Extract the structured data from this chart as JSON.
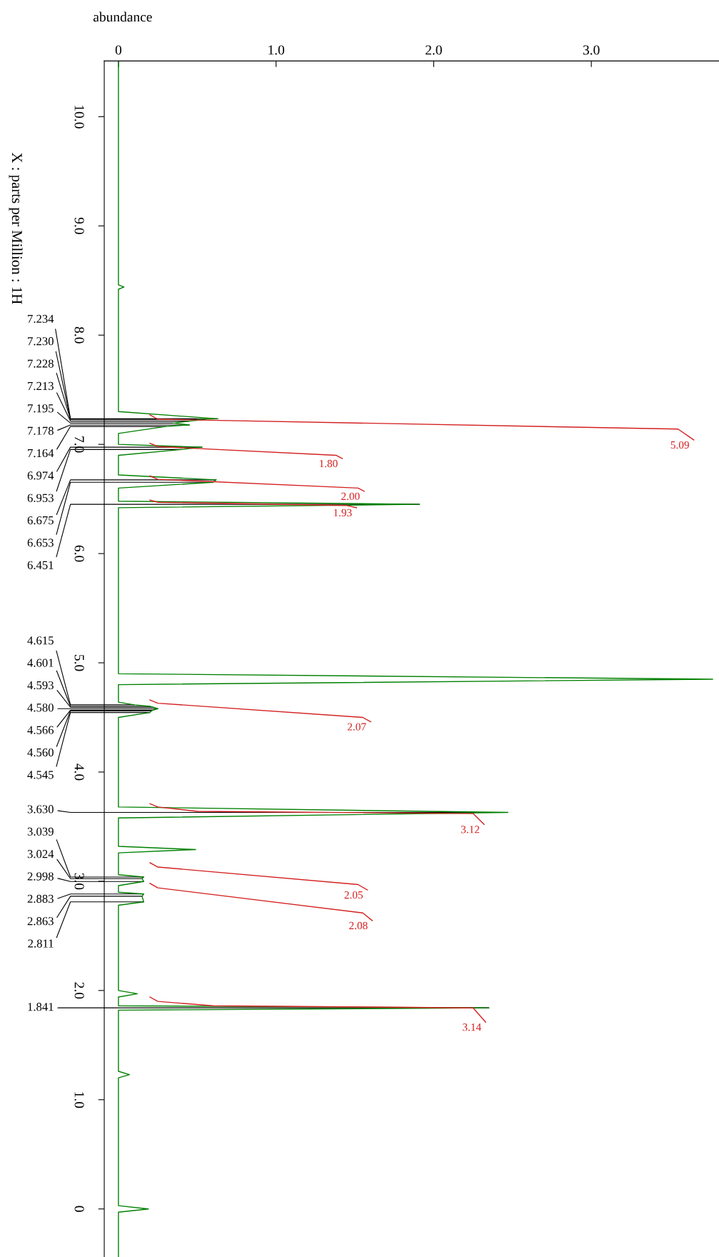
{
  "chart_data": {
    "type": "line",
    "xlabel": "abundance",
    "ylabel": "X : parts per Million : 1H",
    "xlim": [
      -0.09,
      3.81
    ],
    "ylim": [
      -0.44,
      10.51
    ],
    "xticks": [
      {
        "value": 0,
        "label": "0"
      },
      {
        "value": 1,
        "label": "1.0"
      },
      {
        "value": 2,
        "label": "2.0"
      },
      {
        "value": 3,
        "label": "3.0"
      }
    ],
    "yticks": [
      {
        "value": 10,
        "label": "10.0"
      },
      {
        "value": 9,
        "label": "9.0"
      },
      {
        "value": 8,
        "label": "8.0"
      },
      {
        "value": 7,
        "label": "7.0"
      },
      {
        "value": 6,
        "label": "6.0"
      },
      {
        "value": 5,
        "label": "5.0"
      },
      {
        "value": 4,
        "label": "4.0"
      },
      {
        "value": 3,
        "label": "3.0"
      },
      {
        "value": 2,
        "label": "2.0"
      },
      {
        "value": 1,
        "label": "1.0"
      },
      {
        "value": 0,
        "label": "0"
      }
    ],
    "series": [
      {
        "color": "#008000",
        "values": [
          10.51,
          8.46,
          8.44,
          8.42,
          7.3,
          7.234,
          7.23,
          7.228,
          7.213,
          7.195,
          7.178,
          7.164,
          7.1,
          7.0,
          6.974,
          6.953,
          6.9,
          6.72,
          6.675,
          6.653,
          6.6,
          6.48,
          6.451,
          6.42,
          4.9,
          4.85,
          4.8,
          4.64,
          4.615,
          4.601,
          4.593,
          4.58,
          4.566,
          4.56,
          4.545,
          4.5,
          3.68,
          3.63,
          3.58,
          3.32,
          3.29,
          3.26,
          3.06,
          3.039,
          3.024,
          2.998,
          2.96,
          2.9,
          2.883,
          2.863,
          2.811,
          2.78,
          2.0,
          1.97,
          1.94,
          1.86,
          1.841,
          1.82,
          1.26,
          1.23,
          1.2,
          0.03,
          0.0,
          -0.03,
          -0.44
        ],
        "x": [
          0,
          0,
          0.035,
          0,
          0,
          0.63,
          0.5,
          0.55,
          0.45,
          0.35,
          0.45,
          0.3,
          0,
          0,
          0.53,
          0.4,
          0,
          0,
          0.62,
          0.6,
          0,
          0,
          1.91,
          0,
          0,
          3.77,
          0,
          0,
          0.1,
          0.2,
          0.22,
          0.25,
          0.22,
          0.21,
          0.2,
          0,
          0,
          2.47,
          0,
          0,
          0.49,
          0,
          0,
          0.16,
          0.15,
          0.16,
          0,
          0,
          0.16,
          0.15,
          0.16,
          0,
          0,
          0.12,
          0,
          0,
          2.35,
          0,
          0,
          0.07,
          0,
          0,
          0.19,
          0,
          0
        ]
      },
      {
        "color": "#d42020",
        "values": [
          7.27,
          7.23,
          7.14,
          7.04
        ],
        "x": [
          0.2,
          0.25,
          3.55,
          3.65
        ]
      },
      {
        "color": "#d42020",
        "values": [
          7.01,
          6.98,
          6.9,
          6.87
        ],
        "x": [
          0.2,
          0.25,
          1.38,
          1.42
        ]
      },
      {
        "color": "#d42020",
        "values": [
          6.71,
          6.68,
          6.6,
          6.57
        ],
        "x": [
          0.2,
          0.25,
          1.52,
          1.56
        ]
      },
      {
        "color": "#d42020",
        "values": [
          6.49,
          6.47,
          6.44,
          6.42
        ],
        "x": [
          0.2,
          0.25,
          1.45,
          1.51
        ]
      },
      {
        "color": "#d42020",
        "values": [
          4.66,
          4.63,
          4.5,
          4.46
        ],
        "x": [
          0.2,
          0.25,
          1.55,
          1.6
        ]
      },
      {
        "color": "#d42020",
        "values": [
          3.71,
          3.68,
          3.64,
          3.62,
          3.52
        ],
        "x": [
          0.2,
          0.25,
          0.5,
          2.25,
          2.32
        ]
      },
      {
        "color": "#d42020",
        "values": [
          3.17,
          3.13,
          2.97,
          2.92
        ],
        "x": [
          0.2,
          0.25,
          1.52,
          1.58
        ]
      },
      {
        "color": "#d42020",
        "values": [
          2.98,
          2.94,
          2.71,
          2.64
        ],
        "x": [
          0.2,
          0.25,
          1.55,
          1.61
        ]
      },
      {
        "color": "#d42020",
        "values": [
          1.94,
          1.9,
          1.86,
          1.84,
          1.71
        ],
        "x": [
          0.2,
          0.25,
          0.6,
          2.25,
          2.33
        ]
      }
    ],
    "annotations": [
      {
        "text": "7.234",
        "x": 0.63,
        "y": 7.234
      },
      {
        "text": "7.230",
        "x": 0.5,
        "y": 7.23
      },
      {
        "text": "7.228",
        "x": 0.55,
        "y": 7.228
      },
      {
        "text": "7.213",
        "x": 0.45,
        "y": 7.213
      },
      {
        "text": "7.195",
        "x": 0.35,
        "y": 7.195
      },
      {
        "text": "7.178",
        "x": 0.45,
        "y": 7.178
      },
      {
        "text": "7.164",
        "x": 0.3,
        "y": 7.164
      },
      {
        "text": "6.974",
        "x": 0.53,
        "y": 6.974
      },
      {
        "text": "6.953",
        "x": 0.4,
        "y": 6.953
      },
      {
        "text": "6.675",
        "x": 0.62,
        "y": 6.675
      },
      {
        "text": "6.653",
        "x": 0.6,
        "y": 6.653
      },
      {
        "text": "6.451",
        "x": 1.91,
        "y": 6.451
      },
      {
        "text": "4.615",
        "x": 0.1,
        "y": 4.615
      },
      {
        "text": "4.601",
        "x": 0.2,
        "y": 4.601
      },
      {
        "text": "4.593",
        "x": 0.22,
        "y": 4.593
      },
      {
        "text": "4.580",
        "x": 0.25,
        "y": 4.58
      },
      {
        "text": "4.566",
        "x": 0.22,
        "y": 4.566
      },
      {
        "text": "4.560",
        "x": 0.21,
        "y": 4.56
      },
      {
        "text": "4.545",
        "x": 0.2,
        "y": 4.545
      },
      {
        "text": "3.630",
        "x": 2.47,
        "y": 3.63
      },
      {
        "text": "3.039",
        "x": 0.16,
        "y": 3.039
      },
      {
        "text": "3.024",
        "x": 0.15,
        "y": 3.024
      },
      {
        "text": "2.998",
        "x": 0.16,
        "y": 2.998
      },
      {
        "text": "2.883",
        "x": 0.16,
        "y": 2.883
      },
      {
        "text": "2.863",
        "x": 0.15,
        "y": 2.863
      },
      {
        "text": "2.811",
        "x": 0.16,
        "y": 2.811
      },
      {
        "text": "1.841",
        "x": 2.35,
        "y": 1.841
      },
      {
        "text": "5.09",
        "x": 3.65,
        "y": 7.04
      },
      {
        "text": "1.80",
        "x": 1.42,
        "y": 6.87
      },
      {
        "text": "2.00",
        "x": 1.56,
        "y": 6.57
      },
      {
        "text": "1.93",
        "x": 1.51,
        "y": 6.42
      },
      {
        "text": "2.07",
        "x": 1.6,
        "y": 4.46
      },
      {
        "text": "3.12",
        "x": 2.32,
        "y": 3.52
      },
      {
        "text": "2.05",
        "x": 1.58,
        "y": 2.92
      },
      {
        "text": "2.08",
        "x": 1.61,
        "y": 2.64
      },
      {
        "text": "3.14",
        "x": 2.33,
        "y": 1.71
      }
    ]
  }
}
